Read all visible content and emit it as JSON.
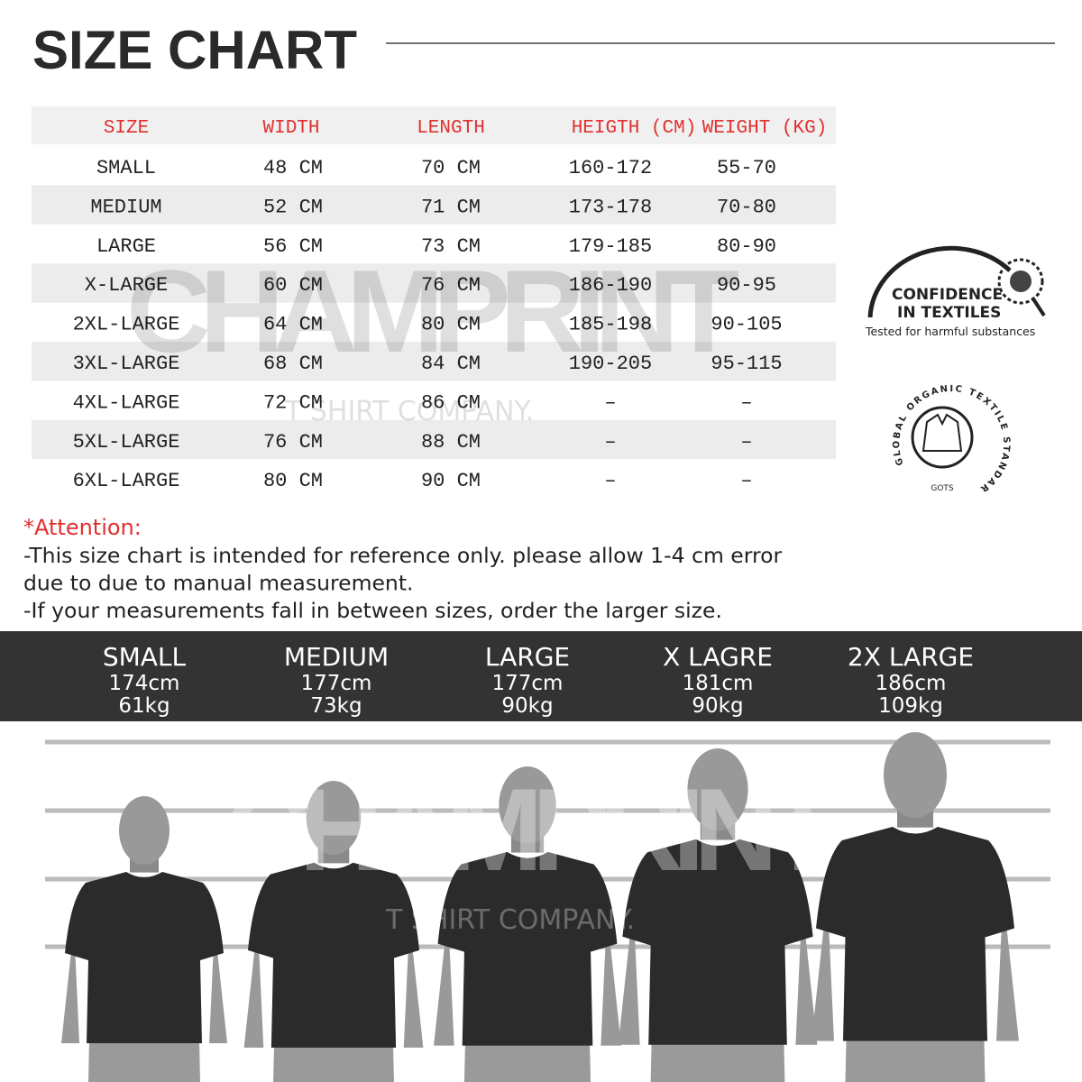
{
  "header": {
    "title": "SIZE CHART"
  },
  "table": {
    "columns": [
      "SIZE",
      "WIDTH",
      "LENGTH",
      "HEIGTH (CM)",
      "WEIGHT (KG)"
    ],
    "rows": [
      [
        "SMALL",
        "48 CM",
        "70 CM",
        "160-172",
        "55-70"
      ],
      [
        "MEDIUM",
        "52 CM",
        "71 CM",
        "173-178",
        "70-80"
      ],
      [
        "LARGE",
        "56 CM",
        "73 CM",
        "179-185",
        "80-90"
      ],
      [
        "X-LARGE",
        "60 CM",
        "76 CM",
        "186-190",
        "90-95"
      ],
      [
        "2XL-LARGE",
        "64 CM",
        "80 CM",
        "185-198",
        "90-105"
      ],
      [
        "3XL-LARGE",
        "68 CM",
        "84 CM",
        "190-205",
        "95-115"
      ],
      [
        "4XL-LARGE",
        "72 CM",
        "86 CM",
        "–",
        "–"
      ],
      [
        "5XL-LARGE",
        "76 CM",
        "88 CM",
        "–",
        "–"
      ],
      [
        "6XL-LARGE",
        "80 CM",
        "90 CM",
        "–",
        "–"
      ]
    ]
  },
  "notes": {
    "heading": "*Attention:",
    "lines": [
      "-This size chart is intended for reference only. please allow 1-4 cm error",
      "due to due to manual measurement.",
      "-If your measurements fall in between sizes, order the larger size."
    ]
  },
  "models": [
    {
      "size": "SMALL",
      "height": "174cm",
      "weight": "61kg"
    },
    {
      "size": "MEDIUM",
      "height": "177cm",
      "weight": "73kg"
    },
    {
      "size": "LARGE",
      "height": "177cm",
      "weight": "90kg"
    },
    {
      "size": "X LAGRE",
      "height": "181cm",
      "weight": "90kg"
    },
    {
      "size": "2X LARGE",
      "height": "186cm",
      "weight": "109kg"
    }
  ],
  "badges": {
    "oeko": {
      "line1": "CONFIDENCE",
      "line2": "IN TEXTILES",
      "caption": "Tested for harmful substances"
    },
    "gots": {
      "arc": "GLOBAL ORGANIC TEXTILE STANDARD",
      "short": "GOTS"
    }
  },
  "watermark": {
    "brand": "CHAMPRINT",
    "tagline": "T SHIRT COMPANY."
  }
}
